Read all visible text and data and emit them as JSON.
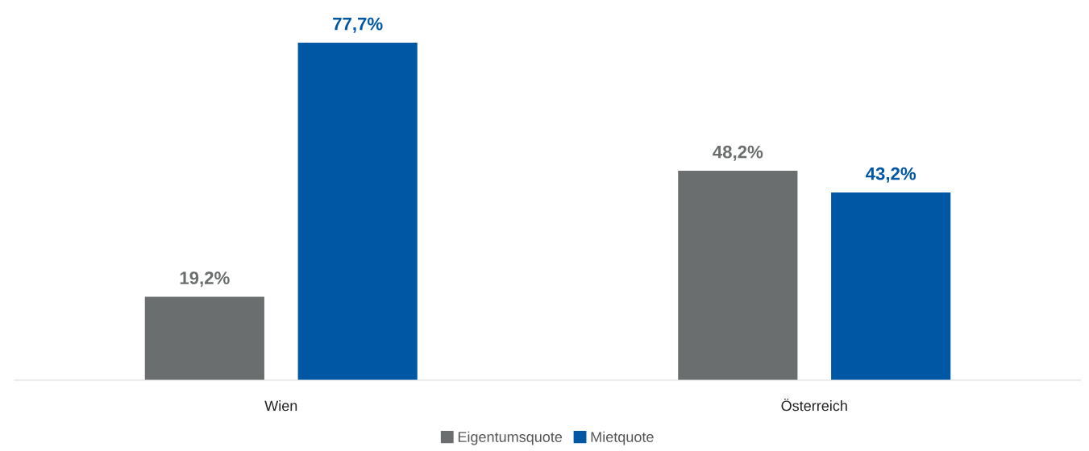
{
  "chart_data": {
    "type": "bar",
    "categories": [
      "Wien",
      "Österreich"
    ],
    "series": [
      {
        "name": "Eigentumsquote",
        "color": "#6b6e6e",
        "values": [
          19.2,
          48.2
        ],
        "value_labels": [
          "19,2%",
          "48,2%"
        ]
      },
      {
        "name": "Mietquote",
        "color": "#0057a4",
        "values": [
          77.7,
          43.2
        ],
        "value_labels": [
          "77,7%",
          "43,2%"
        ]
      }
    ],
    "tick_labels": "x",
    "grid": false,
    "legend": "bottom"
  }
}
